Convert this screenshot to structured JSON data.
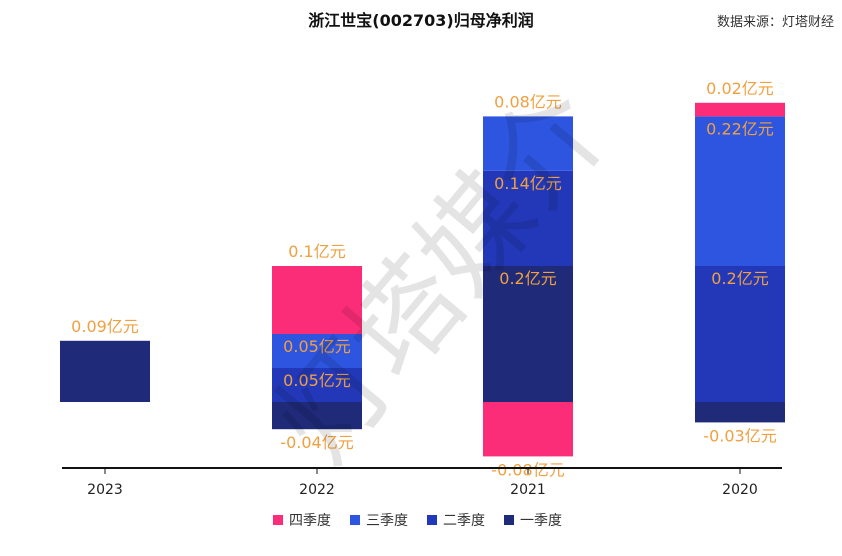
{
  "chart_data": {
    "type": "bar",
    "stacked": true,
    "title": "浙江世宝(002703)归母净利润",
    "source": "数据来源：灯塔财经",
    "watermark": "灯塔媒介",
    "categories": [
      "2023",
      "2022",
      "2021",
      "2020"
    ],
    "unit": "亿元",
    "ylim": [
      -0.1,
      0.5
    ],
    "series": [
      {
        "name": "一季度",
        "color": "#1f2a78",
        "values": [
          0.09,
          -0.04,
          0.2,
          -0.03
        ]
      },
      {
        "name": "二季度",
        "color": "#2338b8",
        "values": [
          null,
          0.05,
          0.14,
          0.2
        ]
      },
      {
        "name": "三季度",
        "color": "#2d55e0",
        "values": [
          null,
          0.05,
          0.08,
          0.22
        ]
      },
      {
        "name": "四季度",
        "color": "#fb2d78",
        "values": [
          null,
          0.1,
          -0.08,
          0.02
        ]
      }
    ],
    "data_labels": [
      {
        "category": "2023",
        "series": "一季度",
        "text": "0.09亿元"
      },
      {
        "category": "2022",
        "series": "四季度",
        "text": "0.1亿元"
      },
      {
        "category": "2022",
        "series": "三季度",
        "text": "0.05亿元"
      },
      {
        "category": "2022",
        "series": "二季度",
        "text": "0.05亿元"
      },
      {
        "category": "2022",
        "series": "一季度",
        "text": "-0.04亿元"
      },
      {
        "category": "2021",
        "series": "三季度",
        "text": "0.08亿元"
      },
      {
        "category": "2021",
        "series": "二季度",
        "text": "0.14亿元"
      },
      {
        "category": "2021",
        "series": "一季度",
        "text": "0.2亿元"
      },
      {
        "category": "2021",
        "series": "四季度",
        "text": "-0.08亿元"
      },
      {
        "category": "2020",
        "series": "四季度",
        "text": "0.02亿元"
      },
      {
        "category": "2020",
        "series": "三季度",
        "text": "0.22亿元"
      },
      {
        "category": "2020",
        "series": "二季度",
        "text": "0.2亿元"
      },
      {
        "category": "2020",
        "series": "一季度",
        "text": "-0.03亿元"
      }
    ],
    "legend_order": [
      "四季度",
      "三季度",
      "二季度",
      "一季度"
    ],
    "legend_position": "bottom-center",
    "grid": false
  }
}
